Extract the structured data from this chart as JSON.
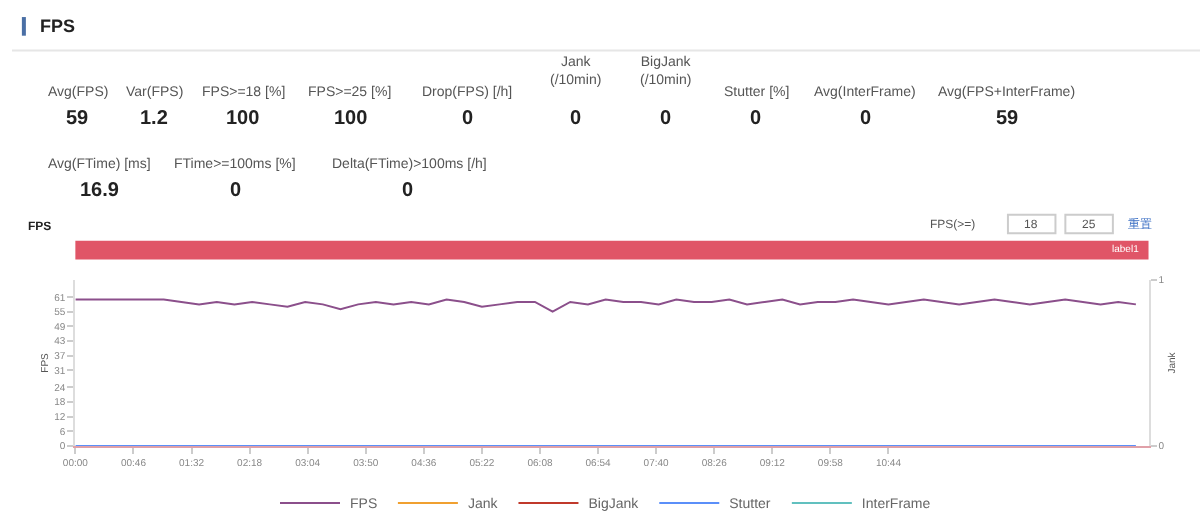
{
  "chart_data": [
    {
      "type": "other",
      "title": "FPS",
      "annotations": [
        "Avg(FPS)",
        "59",
        "Var(FPS)",
        "1.2",
        "FPS>=18 [%]",
        "100",
        "FPS>=25 [%]",
        "100",
        "Drop(FPS) [/h]",
        "0",
        "Jank\n(/10min)",
        "0",
        "BigJank\n(/10min)",
        "0",
        "Stutter [%]",
        "0",
        "Avg(InterFrame)",
        "0",
        "Avg(FPS+InterFrame)",
        "59",
        "Avg(FTime) [ms]",
        "16.9",
        "FTime>=100ms [%]",
        "0",
        "Delta(FTime)>100ms [/h]",
        "0"
      ]
    },
    {
      "type": "line",
      "title": "FPS",
      "ylabel": "FPS",
      "y2label": "Jank",
      "legend": "bottom",
      "marker": "none",
      "line_style": "solid",
      "annotations": [
        "label1",
        "FPS(>=)",
        "18",
        "25",
        "重置"
      ],
      "x": [
        0,
        14,
        28,
        42,
        56,
        70,
        84,
        98,
        112,
        126,
        140,
        154,
        168,
        182,
        196,
        210,
        224,
        238,
        252,
        266,
        280,
        294,
        308,
        322,
        336,
        350,
        364,
        378,
        392,
        406,
        420,
        434,
        448,
        462,
        476,
        490,
        504,
        518,
        532,
        546,
        560,
        574,
        588,
        602,
        616,
        630,
        644,
        658,
        672,
        686,
        700,
        714,
        728,
        742,
        756,
        770,
        784,
        798,
        812,
        826,
        840
      ],
      "xlim": [
        0,
        850
      ],
      "xticks": [
        {
          "value": 0,
          "label": "00:00"
        },
        {
          "value": 46,
          "label": "00:46"
        },
        {
          "value": 92,
          "label": "01:32"
        },
        {
          "value": 138,
          "label": "02:18"
        },
        {
          "value": 184,
          "label": "03:04"
        },
        {
          "value": 230,
          "label": "03:50"
        },
        {
          "value": 276,
          "label": "04:36"
        },
        {
          "value": 322,
          "label": "05:22"
        },
        {
          "value": 368,
          "label": "06:08"
        },
        {
          "value": 414,
          "label": "06:54"
        },
        {
          "value": 460,
          "label": "07:40"
        },
        {
          "value": 506,
          "label": "08:26"
        },
        {
          "value": 552,
          "label": "09:12"
        },
        {
          "value": 598,
          "label": "09:58"
        },
        {
          "value": 644,
          "label": "10:44"
        }
      ],
      "ylim": [
        0,
        68
      ],
      "yticks": [
        0,
        6,
        12,
        18,
        24,
        31,
        37,
        43,
        49,
        55,
        61
      ],
      "y2lim": [
        0,
        1
      ],
      "y2ticks": [
        0,
        1
      ],
      "series": [
        {
          "name": "FPS",
          "color": "#8b4f8b",
          "values": [
            60,
            60,
            60,
            60,
            60,
            60,
            59,
            58,
            59,
            58,
            59,
            58,
            57,
            59,
            58,
            56,
            58,
            59,
            58,
            59,
            58,
            60,
            59,
            57,
            58,
            59,
            59,
            55,
            59,
            58,
            60,
            59,
            59,
            58,
            60,
            59,
            59,
            60,
            58,
            59,
            60,
            58,
            59,
            59,
            60,
            59,
            58,
            59,
            60,
            59,
            58,
            59,
            60,
            59,
            58,
            59,
            60,
            59,
            58,
            59,
            58
          ]
        },
        {
          "name": "Jank",
          "color": "#f0a030",
          "axis": "y2",
          "values": [
            null,
            null,
            null,
            null,
            null,
            null,
            null,
            null,
            null,
            null,
            null,
            null,
            null,
            null,
            null,
            null,
            null,
            null,
            null,
            null,
            null,
            null,
            null,
            null,
            null,
            null,
            null,
            null,
            null,
            null,
            null,
            null,
            null,
            null,
            null,
            null,
            null,
            null,
            null,
            null,
            null,
            null,
            null,
            null,
            null,
            null,
            null,
            null,
            null,
            null,
            null,
            null,
            null,
            null,
            null,
            null,
            null,
            null,
            null,
            null,
            null
          ]
        },
        {
          "name": "BigJank",
          "color": "#c0392b",
          "axis": "y2",
          "values": [
            null,
            null,
            null,
            null,
            null,
            null,
            null,
            null,
            null,
            null,
            null,
            null,
            null,
            null,
            null,
            null,
            null,
            null,
            null,
            null,
            null,
            null,
            null,
            null,
            null,
            null,
            null,
            null,
            null,
            null,
            null,
            null,
            null,
            null,
            null,
            null,
            null,
            null,
            null,
            null,
            null,
            null,
            null,
            null,
            null,
            null,
            null,
            null,
            null,
            null,
            null,
            null,
            null,
            null,
            null,
            null,
            null,
            null,
            null,
            null,
            null
          ]
        },
        {
          "name": "Stutter",
          "color": "#5b8ff9",
          "axis": "y2",
          "values": [
            0,
            0,
            0,
            0,
            0,
            0,
            0,
            0,
            0,
            0,
            0,
            0,
            0,
            0,
            0,
            0,
            0,
            0,
            0,
            0,
            0,
            0,
            0,
            0,
            0,
            0,
            0,
            0,
            0,
            0,
            0,
            0,
            0,
            0,
            0,
            0,
            0,
            0,
            0,
            0,
            0,
            0,
            0,
            0,
            0,
            0,
            0,
            0,
            0,
            0,
            0,
            0,
            0,
            0,
            0,
            0,
            0,
            0,
            0,
            0,
            0
          ]
        },
        {
          "name": "InterFrame",
          "color": "#61c0bf",
          "values": [
            null,
            null,
            null,
            null,
            null,
            null,
            null,
            null,
            null,
            null,
            null,
            null,
            null,
            null,
            null,
            null,
            null,
            null,
            null,
            null,
            null,
            null,
            null,
            null,
            null,
            null,
            null,
            null,
            null,
            null,
            null,
            null,
            null,
            null,
            null,
            null,
            null,
            null,
            null,
            null,
            null,
            null,
            null,
            null,
            null,
            null,
            null,
            null,
            null,
            null,
            null,
            null,
            null,
            null,
            null,
            null,
            null,
            null,
            null,
            null,
            null
          ]
        }
      ]
    }
  ]
}
